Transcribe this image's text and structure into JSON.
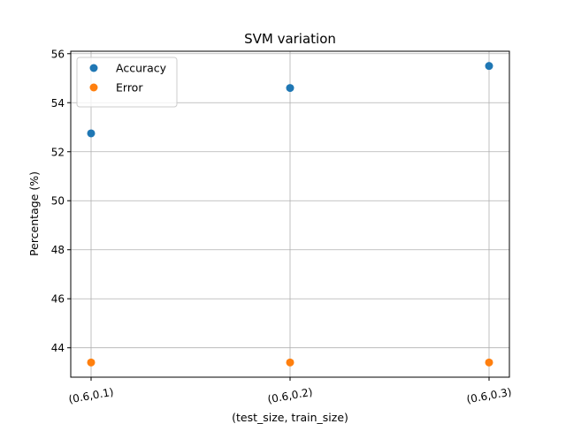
{
  "chart_data": {
    "type": "scatter",
    "title": "SVM variation",
    "xlabel": "(test_size, train_size)",
    "ylabel": "Percentage (%)",
    "categories": [
      "(0.6,0.1)",
      "(0.6,0.2)",
      "(0.6,0.3)"
    ],
    "series": [
      {
        "name": "Accuracy",
        "color": "#1f77b4",
        "values": [
          52.75,
          54.6,
          55.5
        ]
      },
      {
        "name": "Error",
        "color": "#ff7f0e",
        "values": [
          43.4,
          43.4,
          43.4
        ]
      }
    ],
    "ylim": [
      42.8,
      56.1
    ],
    "yticks": [
      44,
      46,
      48,
      50,
      52,
      54,
      56
    ],
    "grid": true,
    "legend_position": "top-left",
    "x_tick_rotation_deg": -10
  }
}
